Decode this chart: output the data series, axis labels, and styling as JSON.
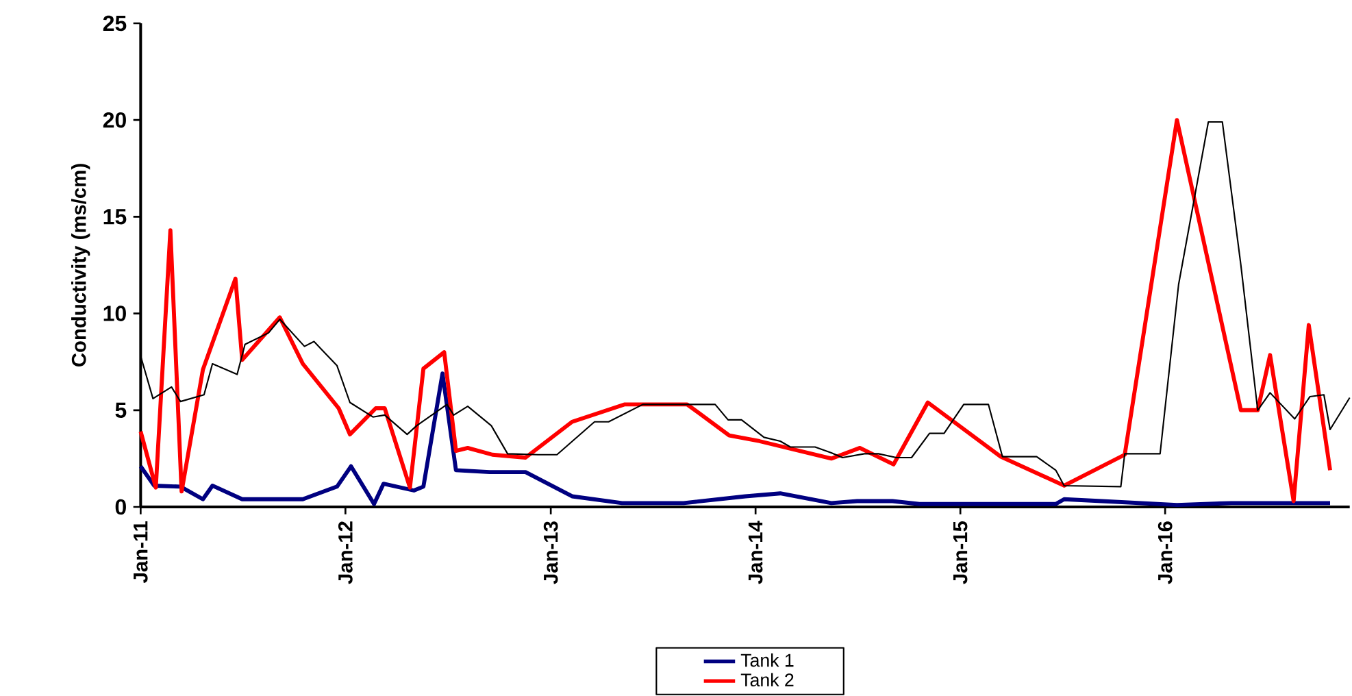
{
  "chart_data": {
    "type": "line",
    "ylabel": "Conductivity (ms/cm)",
    "legend": "bottom",
    "marker": "none",
    "xlim": [
      "2011-01-01",
      "2016-11-25"
    ],
    "xticks": [
      {
        "value": "2011-01-01",
        "label": "Jan-11"
      },
      {
        "value": "2012-01-01",
        "label": "Jan-12"
      },
      {
        "value": "2013-01-01",
        "label": "Jan-13"
      },
      {
        "value": "2014-01-01",
        "label": "Jan-14"
      },
      {
        "value": "2015-01-01",
        "label": "Jan-15"
      },
      {
        "value": "2016-01-01",
        "label": "Jan-16"
      }
    ],
    "ylim": [
      0,
      25
    ],
    "yticks": [
      0,
      5,
      10,
      15,
      20,
      25
    ],
    "series": [
      {
        "name": "Tank 1",
        "color": "#000080",
        "x": [
          "2011-01-01",
          "2011-01-25",
          "2011-03-13",
          "2011-04-22",
          "2011-05-09",
          "2011-07-01",
          "2011-10-17",
          "2011-12-17",
          "2012-01-11",
          "2012-02-21",
          "2012-03-09",
          "2012-05-02",
          "2012-05-19",
          "2012-06-22",
          "2012-07-16",
          "2012-09-14",
          "2012-11-17",
          "2013-02-08",
          "2013-05-08",
          "2013-08-26",
          "2013-12-14",
          "2014-02-14",
          "2014-05-16",
          "2014-07-01",
          "2014-09-02",
          "2014-10-20",
          "2015-06-20",
          "2015-07-05",
          "2015-09-10",
          "2016-01-22",
          "2016-04-28",
          "2016-10-21"
        ],
        "values": [
          2.1,
          1.1,
          1.05,
          0.4,
          1.1,
          0.4,
          0.4,
          1.05,
          2.1,
          0.15,
          1.2,
          0.85,
          1.05,
          6.9,
          1.9,
          1.8,
          1.8,
          0.55,
          0.2,
          0.2,
          0.55,
          0.7,
          0.2,
          0.3,
          0.3,
          0.15,
          0.15,
          0.4,
          0.3,
          0.1,
          0.2,
          0.2
        ]
      },
      {
        "name": "Tank 2",
        "color": "#ff0000",
        "x": [
          "2011-01-01",
          "2011-01-28",
          "2011-02-23",
          "2011-03-15",
          "2011-04-22",
          "2011-06-19",
          "2011-07-01",
          "2011-09-06",
          "2011-10-17",
          "2011-12-20",
          "2012-01-09",
          "2012-02-24",
          "2012-03-11",
          "2012-04-25",
          "2012-05-19",
          "2012-06-25",
          "2012-07-16",
          "2012-08-06",
          "2012-09-19",
          "2012-11-17",
          "2013-02-08",
          "2013-05-13",
          "2013-09-01",
          "2013-11-15",
          "2014-01-08",
          "2014-05-16",
          "2014-07-06",
          "2014-09-04",
          "2014-11-04",
          "2015-03-14",
          "2015-07-05",
          "2015-10-21",
          "2016-01-22",
          "2016-05-15",
          "2016-06-14",
          "2016-07-06",
          "2016-08-17",
          "2016-09-13",
          "2016-10-21"
        ],
        "values": [
          3.9,
          1.0,
          14.3,
          0.8,
          7.1,
          11.8,
          7.6,
          9.8,
          7.4,
          5.1,
          3.75,
          5.1,
          5.1,
          1.0,
          7.15,
          8.0,
          2.9,
          3.05,
          2.7,
          2.55,
          4.4,
          5.3,
          5.3,
          3.7,
          3.4,
          2.5,
          3.05,
          2.2,
          5.4,
          2.6,
          1.1,
          2.7,
          20.0,
          5.0,
          5.0,
          7.85,
          0.3,
          9.4,
          1.9
        ]
      },
      {
        "color": "#000000",
        "x": [
          "2011-01-01",
          "2011-01-23",
          "2011-02-25",
          "2011-03-13",
          "2011-04-24",
          "2011-05-09",
          "2011-06-22",
          "2011-07-06",
          "2011-08-17",
          "2011-09-06",
          "2011-10-20",
          "2011-11-06",
          "2011-12-17",
          "2012-01-09",
          "2012-02-19",
          "2012-03-11",
          "2012-04-20",
          "2012-05-07",
          "2012-06-30",
          "2012-07-12",
          "2012-08-06",
          "2012-09-17",
          "2012-10-16",
          "2012-12-09",
          "2013-01-12",
          "2013-03-20",
          "2013-04-14",
          "2013-06-14",
          "2013-10-21",
          "2013-11-13",
          "2013-12-07",
          "2014-01-16",
          "2014-02-14",
          "2014-03-04",
          "2014-04-17",
          "2014-05-16",
          "2014-06-05",
          "2014-07-14",
          "2014-08-08",
          "2014-09-09",
          "2014-10-06",
          "2014-11-07",
          "2014-12-03",
          "2015-01-07",
          "2015-02-20",
          "2015-03-17",
          "2015-05-17",
          "2015-06-20",
          "2015-07-05",
          "2015-10-14",
          "2015-10-21",
          "2015-12-23",
          "2016-01-25",
          "2016-03-18",
          "2016-04-12",
          "2016-05-15",
          "2016-06-14",
          "2016-07-06",
          "2016-08-19",
          "2016-09-15",
          "2016-10-10",
          "2016-10-21",
          "2016-11-25"
        ],
        "values": [
          7.8,
          5.6,
          6.2,
          5.45,
          5.8,
          7.4,
          6.85,
          8.4,
          9.0,
          9.7,
          8.3,
          8.55,
          7.3,
          5.4,
          4.65,
          4.75,
          3.75,
          4.2,
          5.3,
          4.75,
          5.2,
          4.2,
          2.75,
          2.7,
          2.7,
          4.4,
          4.4,
          5.3,
          5.3,
          4.5,
          4.5,
          3.6,
          3.4,
          3.1,
          3.1,
          2.8,
          2.55,
          2.75,
          2.75,
          2.55,
          2.55,
          3.8,
          3.8,
          5.3,
          5.3,
          2.6,
          2.6,
          1.9,
          1.1,
          1.05,
          2.75,
          2.75,
          11.5,
          19.9,
          19.9,
          12.5,
          5.0,
          5.9,
          4.55,
          5.7,
          5.8,
          4.0,
          5.65
        ]
      }
    ]
  }
}
